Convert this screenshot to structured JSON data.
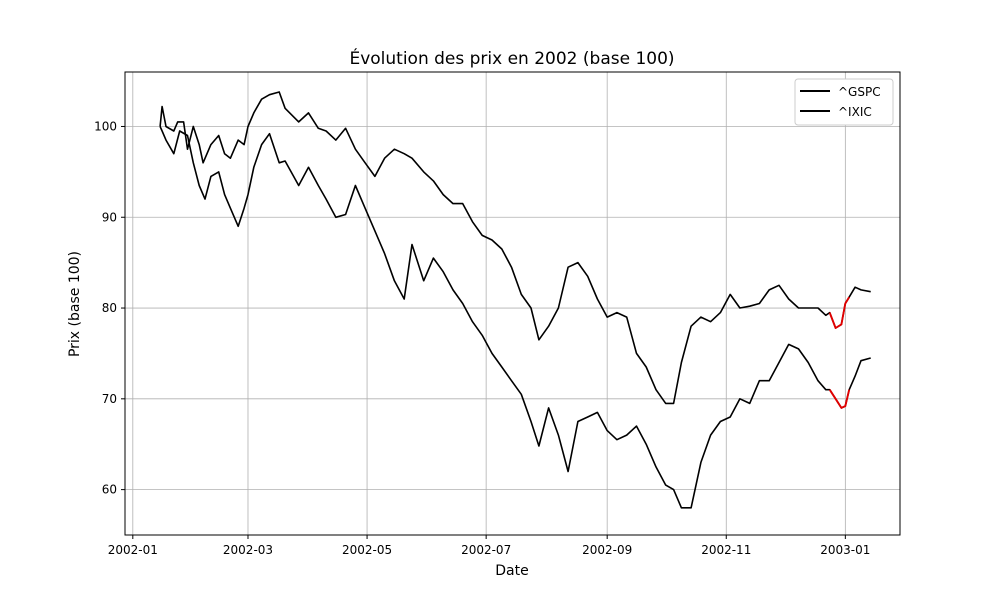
{
  "chart_data": {
    "type": "line",
    "title": "Évolution des prix en 2002 (base 100)",
    "xlabel": "Date",
    "ylabel": "Prix (base 100)",
    "grid": true,
    "legend_position": "top-right",
    "xlim": [
      "2001-12-28",
      "2003-01-29"
    ],
    "ylim": [
      55,
      106
    ],
    "x_ticks": [
      {
        "date": "2002-01-01",
        "label": "2002-01"
      },
      {
        "date": "2002-03-01",
        "label": "2002-03"
      },
      {
        "date": "2002-05-01",
        "label": "2002-05"
      },
      {
        "date": "2002-07-01",
        "label": "2002-07"
      },
      {
        "date": "2002-09-01",
        "label": "2002-09"
      },
      {
        "date": "2002-11-01",
        "label": "2002-11"
      },
      {
        "date": "2003-01-01",
        "label": "2003-01"
      }
    ],
    "y_ticks": [
      60,
      70,
      80,
      90,
      100
    ],
    "series_color": "#000000",
    "highlight_color": "#e00000",
    "highlight_range": [
      "2002-12-24",
      "2003-01-03"
    ],
    "series": [
      {
        "name": "^GSPC",
        "x": [
          "2002-01-15",
          "2002-01-16",
          "2002-01-18",
          "2002-01-22",
          "2002-01-24",
          "2002-01-27",
          "2002-01-29",
          "2002-02-01",
          "2002-02-04",
          "2002-02-06",
          "2002-02-10",
          "2002-02-14",
          "2002-02-17",
          "2002-02-20",
          "2002-02-24",
          "2002-02-27",
          "2002-03-01",
          "2002-03-04",
          "2002-03-08",
          "2002-03-12",
          "2002-03-17",
          "2002-03-20",
          "2002-03-27",
          "2002-04-01",
          "2002-04-06",
          "2002-04-10",
          "2002-04-15",
          "2002-04-20",
          "2002-04-25",
          "2002-04-30",
          "2002-05-05",
          "2002-05-10",
          "2002-05-15",
          "2002-05-20",
          "2002-05-24",
          "2002-05-30",
          "2002-06-04",
          "2002-06-09",
          "2002-06-14",
          "2002-06-19",
          "2002-06-24",
          "2002-06-29",
          "2002-07-04",
          "2002-07-09",
          "2002-07-14",
          "2002-07-19",
          "2002-07-24",
          "2002-07-28",
          "2002-08-02",
          "2002-08-07",
          "2002-08-12",
          "2002-08-17",
          "2002-08-22",
          "2002-08-27",
          "2002-09-01",
          "2002-09-06",
          "2002-09-11",
          "2002-09-16",
          "2002-09-21",
          "2002-09-26",
          "2002-10-01",
          "2002-10-05",
          "2002-10-09",
          "2002-10-14",
          "2002-10-19",
          "2002-10-24",
          "2002-10-29",
          "2002-11-03",
          "2002-11-08",
          "2002-11-13",
          "2002-11-18",
          "2002-11-23",
          "2002-11-28",
          "2002-12-03",
          "2002-12-08",
          "2002-12-13",
          "2002-12-18",
          "2002-12-22",
          "2002-12-24",
          "2002-12-27",
          "2002-12-30",
          "2003-01-01",
          "2003-01-03",
          "2003-01-06",
          "2003-01-09",
          "2003-01-14"
        ],
        "values": [
          100,
          102.2,
          100,
          99.5,
          100.5,
          100.5,
          97.5,
          100,
          98,
          96,
          98,
          99,
          97,
          96.5,
          98.5,
          98,
          100,
          101.5,
          103,
          103.5,
          103.8,
          102,
          100.5,
          101.5,
          99.8,
          99.5,
          98.5,
          99.8,
          97.5,
          96,
          94.5,
          96.5,
          97.5,
          97,
          96.5,
          95,
          94,
          92.5,
          91.5,
          91.5,
          89.5,
          88,
          87.5,
          86.5,
          84.5,
          81.5,
          80,
          76.5,
          78,
          80,
          84.5,
          85,
          83.5,
          81,
          79,
          79.5,
          79,
          75,
          73.5,
          71,
          69.5,
          69.5,
          74,
          78,
          79,
          78.5,
          79.5,
          81.5,
          80,
          80.2,
          80.5,
          82,
          82.5,
          81,
          80,
          80,
          80,
          79.2,
          79.5,
          77.8,
          78.2,
          80.5,
          81.2,
          82.3,
          82,
          81.8
        ]
      },
      {
        "name": "^IXIC",
        "x": [
          "2002-01-15",
          "2002-01-16",
          "2002-01-18",
          "2002-01-22",
          "2002-01-25",
          "2002-01-29",
          "2002-02-01",
          "2002-02-04",
          "2002-02-07",
          "2002-02-10",
          "2002-02-14",
          "2002-02-17",
          "2002-02-20",
          "2002-02-24",
          "2002-02-27",
          "2002-03-01",
          "2002-03-04",
          "2002-03-08",
          "2002-03-12",
          "2002-03-17",
          "2002-03-20",
          "2002-03-27",
          "2002-04-01",
          "2002-04-06",
          "2002-04-10",
          "2002-04-15",
          "2002-04-20",
          "2002-04-25",
          "2002-04-30",
          "2002-05-05",
          "2002-05-10",
          "2002-05-15",
          "2002-05-20",
          "2002-05-24",
          "2002-05-30",
          "2002-06-04",
          "2002-06-09",
          "2002-06-14",
          "2002-06-19",
          "2002-06-24",
          "2002-06-29",
          "2002-07-04",
          "2002-07-09",
          "2002-07-14",
          "2002-07-19",
          "2002-07-24",
          "2002-07-28",
          "2002-08-02",
          "2002-08-07",
          "2002-08-12",
          "2002-08-17",
          "2002-08-22",
          "2002-08-27",
          "2002-09-01",
          "2002-09-06",
          "2002-09-11",
          "2002-09-16",
          "2002-09-21",
          "2002-09-26",
          "2002-10-01",
          "2002-10-05",
          "2002-10-09",
          "2002-10-14",
          "2002-10-19",
          "2002-10-24",
          "2002-10-29",
          "2002-11-03",
          "2002-11-08",
          "2002-11-13",
          "2002-11-18",
          "2002-11-23",
          "2002-11-28",
          "2002-12-03",
          "2002-12-08",
          "2002-12-13",
          "2002-12-18",
          "2002-12-22",
          "2002-12-24",
          "2002-12-27",
          "2002-12-30",
          "2003-01-01",
          "2003-01-03",
          "2003-01-06",
          "2003-01-09",
          "2003-01-14"
        ],
        "values": [
          100,
          99.5,
          98.5,
          97,
          99.5,
          99,
          96,
          93.5,
          92,
          94.5,
          95,
          92.5,
          91,
          89,
          91,
          92.5,
          95.5,
          98,
          99.2,
          96,
          96.2,
          93.5,
          95.5,
          93.5,
          92,
          90,
          90.3,
          93.5,
          91,
          88.5,
          86,
          83,
          81,
          87,
          83,
          85.5,
          84,
          82,
          80.5,
          78.5,
          77,
          75,
          73.5,
          72,
          70.5,
          67.5,
          64.8,
          69,
          66,
          62,
          67.5,
          68,
          68.5,
          66.5,
          65.5,
          66,
          67,
          65,
          62.5,
          60.5,
          60,
          58,
          58,
          63,
          66,
          67.5,
          68,
          70,
          69.5,
          72,
          72,
          74,
          76,
          75.5,
          74,
          72,
          71,
          71,
          70,
          69,
          69.2,
          71,
          72.5,
          74.2,
          74.5
        ]
      }
    ]
  }
}
